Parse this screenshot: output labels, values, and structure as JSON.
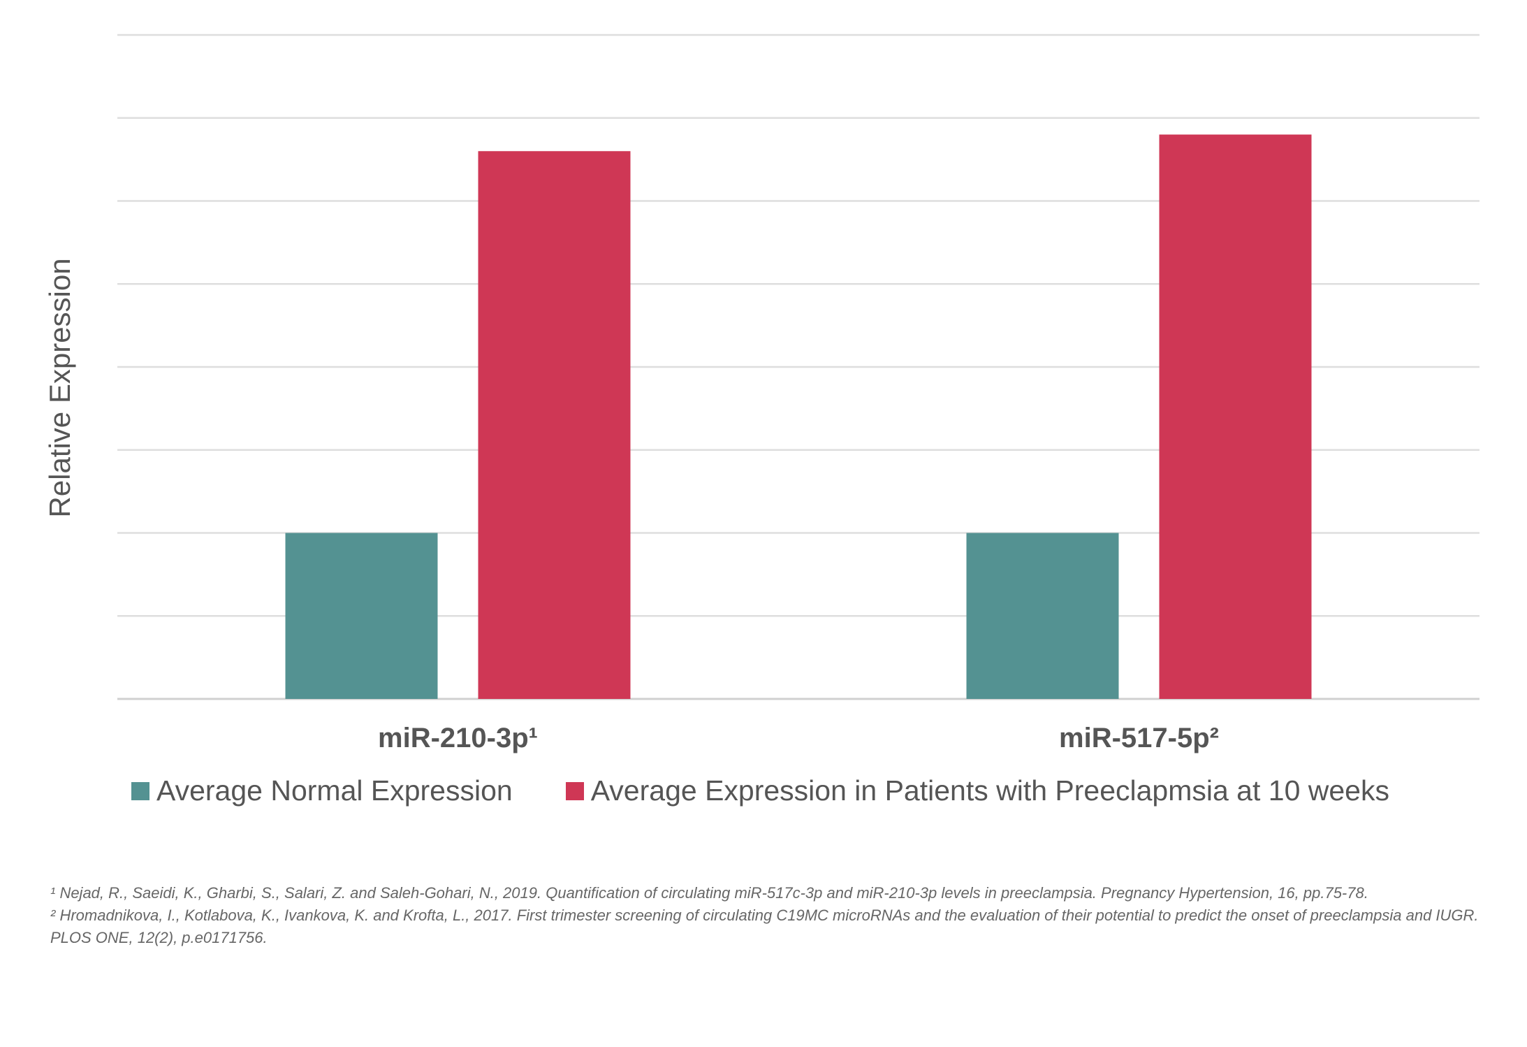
{
  "chart_data": {
    "type": "bar",
    "title": "",
    "xlabel": "",
    "ylabel": "Relative Expression",
    "categories": [
      "miR-210-3p¹",
      "miR-517-5p²"
    ],
    "ylim": [
      0,
      8
    ],
    "grid": true,
    "legend_position": "bottom",
    "series": [
      {
        "name": "Average Normal Expression",
        "values": [
          2.0,
          2.0
        ],
        "color": "#549292"
      },
      {
        "name": "Average Expression in Patients with Preeclapmsia at 10 weeks",
        "values": [
          6.6,
          6.8
        ],
        "color": "#cf3755"
      }
    ]
  },
  "footnotes": [
    "¹ Nejad, R., Saeidi, K., Gharbi, S., Salari, Z. and Saleh-Gohari, N., 2019. Quantification of circulating miR-517c-3p and miR-210-3p levels in preeclampsia. Pregnancy Hypertension, 16, pp.75-78.",
    "² Hromadnikova, I., Kotlabova, K., Ivankova, K. and Krofta, L., 2017. First trimester screening of circulating C19MC microRNAs and the evaluation of their potential to predict the onset of preeclampsia and IUGR. PLOS ONE, 12(2), p.e0171756."
  ]
}
